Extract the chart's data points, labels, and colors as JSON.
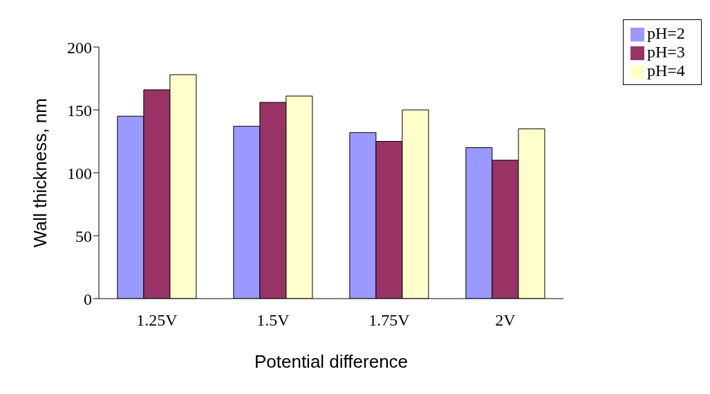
{
  "chart_data": {
    "type": "bar",
    "xlabel": "Potential difference",
    "ylabel": "Wall thickness, nm",
    "categories": [
      "1.25V",
      "1.5V",
      "1.75V",
      "2V"
    ],
    "series": [
      {
        "name": "pH=2",
        "color": "#9999ff",
        "values": [
          145,
          137,
          132,
          120
        ]
      },
      {
        "name": "pH=3",
        "color": "#993366",
        "values": [
          166,
          156,
          125,
          110
        ]
      },
      {
        "name": "pH=4",
        "color": "#ffffcc",
        "values": [
          178,
          161,
          150,
          135
        ]
      }
    ],
    "ylim": [
      0,
      200
    ],
    "yticks": [
      0,
      50,
      100,
      150,
      200
    ],
    "grid": false,
    "legend": "top right"
  }
}
